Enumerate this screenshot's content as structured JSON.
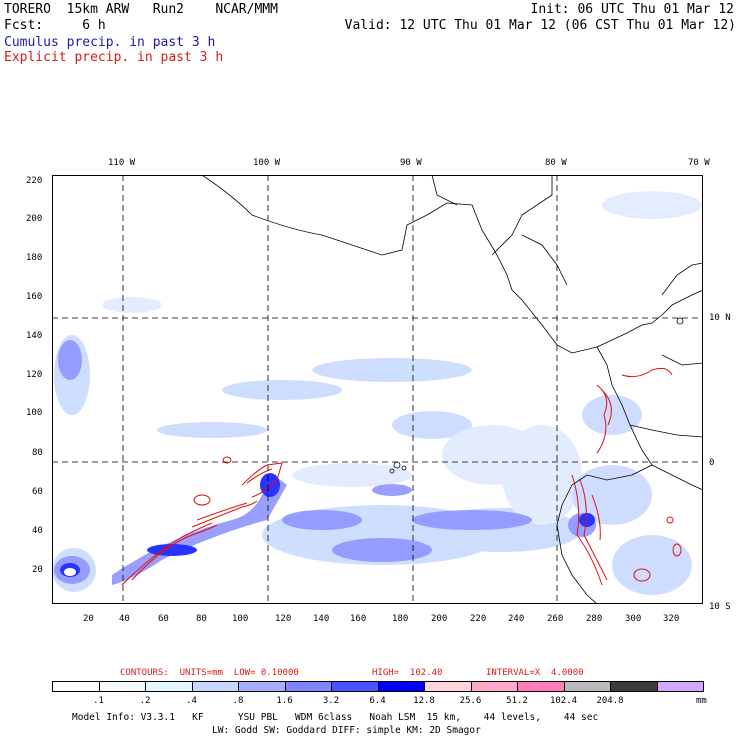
{
  "header": {
    "line1_left": "TORERO  15km ARW   Run2    NCAR/MMM",
    "line1_right": "Init: 06 UTC Thu 01 Mar 12",
    "line2_left": "Fcst:     6 h",
    "line2_right": "Valid: 12 UTC Thu 01 Mar 12 (06 CST Thu 01 Mar 12)",
    "line3": "Cumulus precip. in past 3 h",
    "line4": "Explicit precip. in past 3 h"
  },
  "map": {
    "lon_labels": [
      "110 W",
      "100 W",
      "90 W",
      "80 W",
      "70 W"
    ],
    "lat_labels": [
      "10 N",
      "0",
      "10 S"
    ],
    "y_ticks": [
      "220",
      "200",
      "180",
      "160",
      "140",
      "120",
      "100",
      "80",
      "60",
      "40",
      "20"
    ],
    "x_ticks": [
      "20",
      "40",
      "60",
      "80",
      "100",
      "120",
      "140",
      "160",
      "180",
      "200",
      "220",
      "240",
      "260",
      "280",
      "300",
      "320"
    ]
  },
  "contours": {
    "label": "CONTOURS:  UNITS=mm  LOW= 0.10000",
    "high": "HIGH=  102.40",
    "interval": "INTERVAL=X  4.0000"
  },
  "colorbar": {
    "colors": [
      "#ffffff",
      "#ffffff",
      "#f4fbff",
      "#e4f6ff",
      "#c6d8ff",
      "#a7acff",
      "#7e85ff",
      "#4a52ff",
      "#0000ff",
      "#ffd6dc",
      "#ffaacd",
      "#ff7eb8",
      "#bababa",
      "#3c3c3c",
      "#d0a8ff"
    ],
    "labels": [
      ".1",
      ".2",
      ".4",
      ".8",
      "1.6",
      "3.2",
      "6.4",
      "12.8",
      "25.6",
      "51.2",
      "102.4",
      "204.8"
    ],
    "unit": "mm"
  },
  "footer": {
    "line1": "Model Info: V3.3.1   KF      YSU PBL   WDM 6class   Noah LSM  15 km,    44 levels,    44 sec",
    "line2": "LW: Godd SW: Goddard DIFF: simple KM: 2D Smagor"
  }
}
